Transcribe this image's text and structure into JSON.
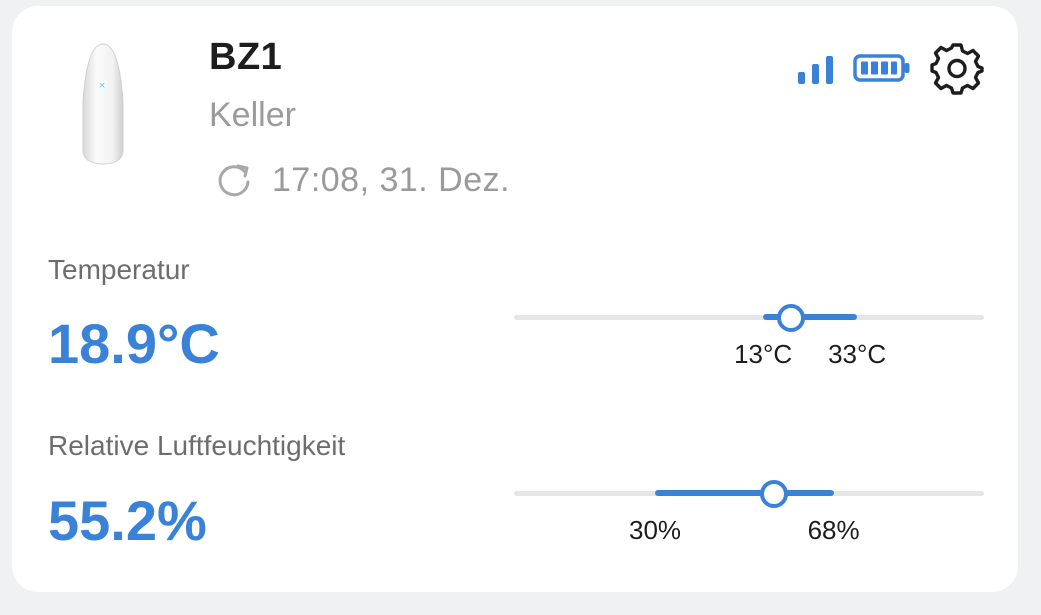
{
  "device": {
    "name": "BZ1",
    "location": "Keller",
    "last_update": "17:08, 31. Dez.",
    "image_icon": "sensor-device",
    "status_icons": [
      "signal-icon",
      "battery-icon",
      "gear-icon"
    ]
  },
  "colors": {
    "accent": "#3a82d8",
    "muted": "#9a9a9a",
    "label": "#6d6d70",
    "track": "#e6e6e8"
  },
  "temperature": {
    "label": "Temperatur",
    "value": "18.9°C",
    "min_label": "13°C",
    "max_label": "33°C",
    "range_fraction": {
      "start": 0.53,
      "end": 0.73
    },
    "value_fraction": 0.587
  },
  "humidity": {
    "label": "Relative Luftfeuchtigkeit",
    "value": "55.2%",
    "min_label": "30%",
    "max_label": "68%",
    "range_fraction": {
      "start": 0.3,
      "end": 0.68
    },
    "value_fraction": 0.552
  }
}
